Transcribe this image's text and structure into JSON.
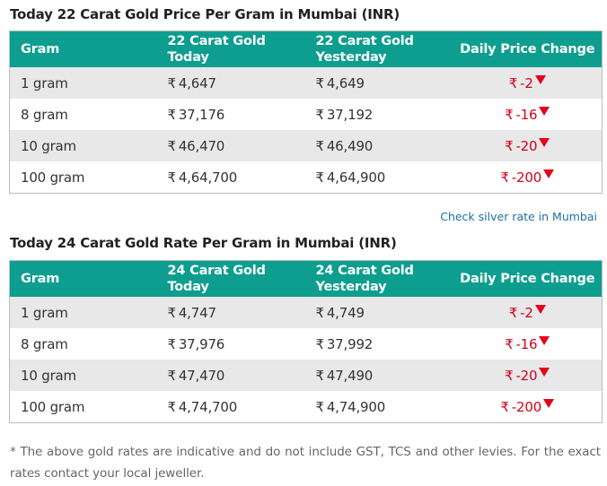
{
  "section_22k": {
    "title": "Today 22 Carat Gold Price Per Gram in Mumbai (INR)",
    "headers": {
      "gram": "Gram",
      "today_line1": "22 Carat Gold",
      "today_line2": "Today",
      "yesterday_line1": "22 Carat Gold",
      "yesterday_line2": "Yesterday",
      "change": "Daily Price Change"
    },
    "rows": [
      {
        "gram": "1 gram",
        "today": "4,647",
        "yesterday": "4,649",
        "change": "-2"
      },
      {
        "gram": "8 gram",
        "today": "37,176",
        "yesterday": "37,192",
        "change": "-16"
      },
      {
        "gram": "10 gram",
        "today": "46,470",
        "yesterday": "46,490",
        "change": "-20"
      },
      {
        "gram": "100 gram",
        "today": "4,64,700",
        "yesterday": "4,64,900",
        "change": "-200"
      }
    ]
  },
  "silver_link": "Check silver rate in Mumbai",
  "section_24k": {
    "title": "Today 24 Carat Gold Rate Per Gram in Mumbai (INR)",
    "headers": {
      "gram": "Gram",
      "today_line1": "24 Carat Gold",
      "today_line2": "Today",
      "yesterday_line1": "24 Carat Gold",
      "yesterday_line2": "Yesterday",
      "change": "Daily Price Change"
    },
    "rows": [
      {
        "gram": "1 gram",
        "today": "4,747",
        "yesterday": "4,749",
        "change": "-2"
      },
      {
        "gram": "8 gram",
        "today": "37,976",
        "yesterday": "37,992",
        "change": "-16"
      },
      {
        "gram": "10 gram",
        "today": "47,470",
        "yesterday": "47,490",
        "change": "-20"
      },
      {
        "gram": "100 gram",
        "today": "4,74,700",
        "yesterday": "4,74,900",
        "change": "-200"
      }
    ]
  },
  "currency_symbol": "₹",
  "footnote": "* The above gold rates are indicative and do not include GST, TCS and other levies. For the exact rates contact your local jeweller.",
  "colors": {
    "header_bg": "#0d9e8f",
    "shaded_row": "#e8e8e8",
    "change_red": "#d0021b",
    "link_blue": "#1d6fa5"
  }
}
